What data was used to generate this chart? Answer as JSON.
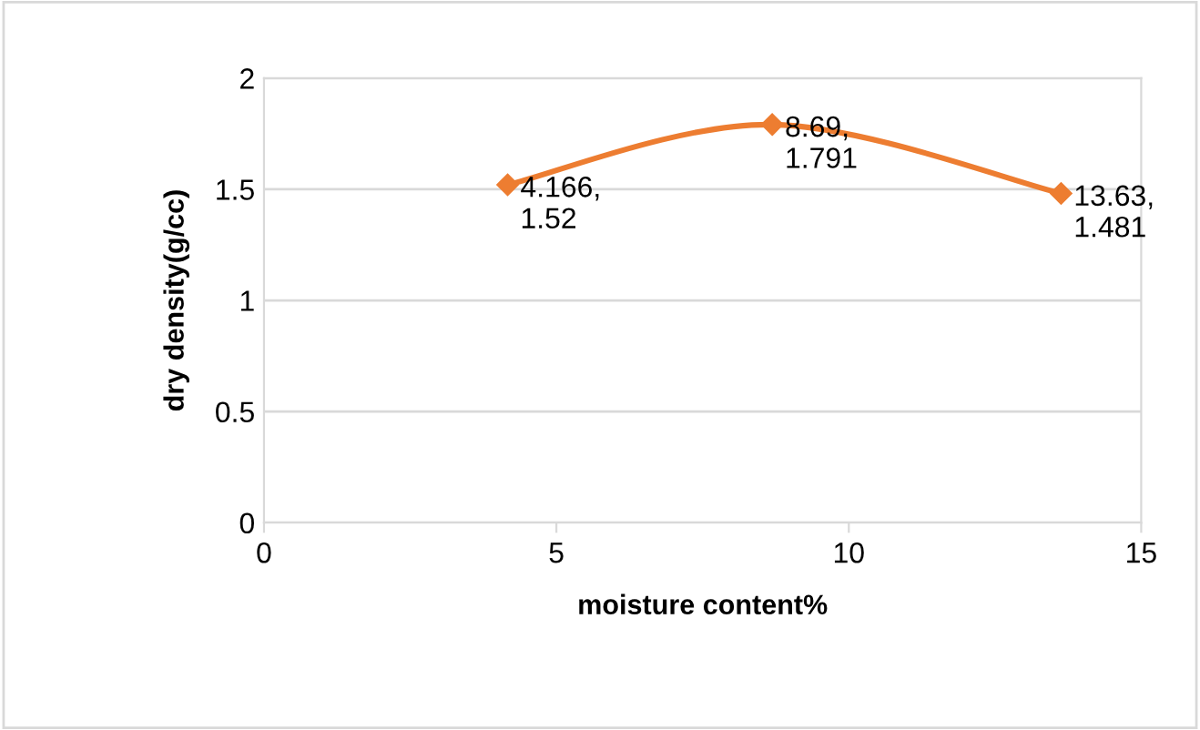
{
  "chart_data": {
    "type": "line",
    "xlabel": "moisture content%",
    "ylabel": "dry density(g/cc)",
    "x": [
      4.166,
      8.69,
      13.63
    ],
    "series": [
      {
        "color": "#ed7d31",
        "values": [
          1.52,
          1.791,
          1.481
        ],
        "value_labels": [
          "4.166,\n1.52",
          "8.69,\n1.791",
          "13.63,\n1.481"
        ]
      }
    ],
    "xlim": [
      0,
      15
    ],
    "xticks": [
      0,
      5,
      10,
      15
    ],
    "ylim": [
      0,
      2
    ],
    "yticks": [
      0,
      0.5,
      1,
      1.5,
      2
    ],
    "grid": "y",
    "marker": "diamond",
    "line_style": "solid",
    "legend": false
  }
}
